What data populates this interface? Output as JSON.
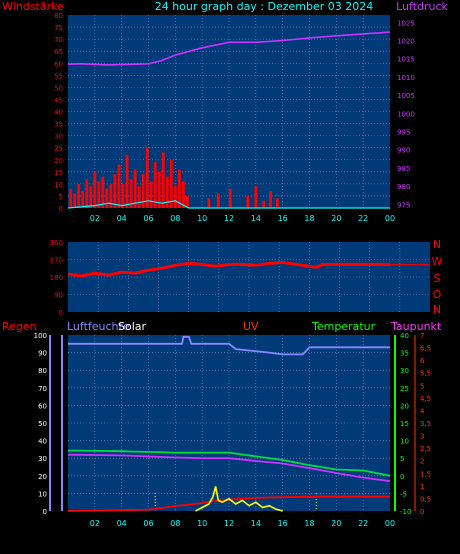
{
  "colors": {
    "background": "#000000",
    "plot_bg": "#003a78",
    "grid": "#6f8fb8",
    "red": "#ff0000",
    "magenta": "#cc33ff",
    "cyan": "#00ffff",
    "title": "#00ffff",
    "regen": "#ff0000",
    "luftfeuchte": "#8888ff",
    "solar": "#ffffff",
    "uv": "#ff3300",
    "temperatur": "#00ff00",
    "taupunkt": "#ff33ff",
    "solar_line": "#ffff00",
    "green_line": "#00dd44",
    "humidity_line": "#8888ff"
  },
  "chart_data": [
    {
      "type": "line",
      "title": "24 hour graph day : Dezember 03 2024",
      "ylabel_left": "Windstärke",
      "ylabel_right": "Luftdruck",
      "x_ticks": [
        "02",
        "04",
        "06",
        "08",
        "10",
        "12",
        "14",
        "16",
        "18",
        "20",
        "22",
        "00"
      ],
      "y_left_ticks": [
        "0",
        "5",
        "10",
        "15",
        "20",
        "25",
        "30",
        "35",
        "40",
        "45",
        "50",
        "55",
        "60",
        "65",
        "70",
        "75",
        "80"
      ],
      "y_left_range": [
        0,
        80
      ],
      "y_right_ticks": [
        "975",
        "980",
        "985",
        "990",
        "995",
        "1000",
        "1005",
        "1010",
        "1015",
        "1020",
        "1025"
      ],
      "y_right_range": [
        974,
        1027
      ],
      "grid": true,
      "series": [
        {
          "color": "#cc33ff",
          "axis": "right",
          "x": [
            0,
            1,
            3,
            6,
            7,
            8,
            10,
            12,
            14,
            16,
            18,
            20,
            22,
            24
          ],
          "y": [
            1013.5,
            1013.6,
            1013.3,
            1013.6,
            1014.5,
            1016.0,
            1018.0,
            1019.5,
            1019.5,
            1020.0,
            1020.7,
            1021.3,
            1021.8,
            1022.3
          ]
        },
        {
          "color": "#ff0000",
          "axis": "left",
          "style": "bars",
          "x": [
            0.2,
            0.5,
            0.8,
            1.1,
            1.4,
            1.7,
            2.0,
            2.3,
            2.6,
            2.9,
            3.2,
            3.5,
            3.8,
            4.1,
            4.4,
            4.7,
            5.0,
            5.3,
            5.6,
            5.9,
            6.2,
            6.5,
            6.8,
            7.1,
            7.4,
            7.7,
            8.0,
            8.3,
            8.6,
            8.9,
            10.5,
            11.2,
            12.1,
            13.4,
            14.0,
            14.6,
            15.1,
            15.6
          ],
          "y": [
            8,
            6,
            10,
            7,
            12,
            9,
            15,
            11,
            13,
            8,
            10,
            14,
            18,
            10,
            22,
            12,
            16,
            9,
            14,
            25,
            11,
            19,
            15,
            23,
            13,
            20,
            9,
            16,
            11,
            5,
            4,
            6,
            8,
            5,
            9,
            3,
            7,
            4
          ]
        },
        {
          "color": "#00ffff",
          "axis": "left",
          "x": [
            0,
            2,
            3,
            4,
            5,
            6,
            7,
            8,
            9,
            10,
            24
          ],
          "y": [
            0,
            1,
            2,
            1,
            2,
            3,
            2,
            3,
            0,
            0,
            0
          ]
        }
      ]
    },
    {
      "type": "line",
      "ylabel_right_letters": [
        "N",
        "W",
        "S",
        "O",
        "N"
      ],
      "y_left_ticks": [
        "0",
        "90",
        "180",
        "270",
        "360"
      ],
      "y_left_range": [
        0,
        360
      ],
      "grid": true,
      "series": [
        {
          "color": "#ff0000",
          "x": [
            0,
            1,
            2,
            3,
            4,
            5,
            6,
            7,
            8,
            9,
            10,
            11,
            12,
            13,
            14,
            15,
            16,
            17,
            18,
            18.5,
            19,
            24
          ],
          "y": [
            195,
            185,
            200,
            190,
            205,
            200,
            215,
            225,
            240,
            250,
            245,
            235,
            245,
            245,
            240,
            250,
            255,
            245,
            235,
            230,
            245,
            245
          ]
        }
      ]
    },
    {
      "type": "line",
      "labels": {
        "regen": "Regen",
        "luftfeuchte": "Luftfeuchte",
        "solar": "Solar",
        "uv": "UV",
        "temperatur": "Temperatur",
        "taupunkt": "Taupunkt"
      },
      "x_ticks": [
        "02",
        "04",
        "06",
        "08",
        "10",
        "12",
        "14",
        "16",
        "18",
        "20",
        "22",
        "00"
      ],
      "y_left_ticks": [
        "0",
        "10",
        "20",
        "30",
        "40",
        "50",
        "60",
        "70",
        "80",
        "90",
        "100"
      ],
      "y_left_range": [
        0,
        100
      ],
      "y_right_ticks": [
        "-10",
        "-5",
        "0",
        "5",
        "10",
        "15",
        "20",
        "25",
        "30",
        "35",
        "40"
      ],
      "y_right_range": [
        -10,
        40
      ],
      "y_uv_ticks": [
        "0",
        "0,5",
        "1",
        "1,5",
        "2",
        "2,5",
        "3",
        "3,5",
        "4",
        "4,5",
        "5",
        "5,5",
        "6",
        "6,5",
        "7"
      ],
      "y_uv_range": [
        0,
        7
      ],
      "grid": true,
      "series": [
        {
          "name": "Luftfeuchte",
          "color": "#8888ff",
          "axis": "left",
          "x": [
            0,
            8.5,
            8.6,
            9.0,
            9.2,
            12.0,
            12.5,
            15.0,
            16.0,
            17.5,
            18.0,
            24.0
          ],
          "y": [
            95,
            95,
            99,
            99,
            95,
            95,
            92,
            90,
            89,
            89,
            93,
            93
          ]
        },
        {
          "color": "#00dd44",
          "axis": "right",
          "x": [
            0,
            4,
            8,
            10,
            12,
            14,
            16,
            18,
            20,
            22,
            24
          ],
          "y": [
            7.2,
            7.0,
            6.6,
            6.6,
            6.6,
            5.5,
            4.5,
            3.0,
            1.8,
            1.5,
            0.0
          ]
        },
        {
          "color": "#cc33ff",
          "axis": "right",
          "x": [
            0,
            4,
            8,
            10,
            12,
            14,
            16,
            18,
            20,
            22,
            24
          ],
          "y": [
            6.0,
            5.8,
            5.2,
            5.0,
            5.0,
            4.2,
            3.5,
            2.2,
            0.8,
            -0.5,
            -1.5
          ]
        },
        {
          "color": "#ff0000",
          "axis": "uv",
          "x": [
            0,
            6,
            7,
            8,
            9,
            10,
            11,
            12,
            14,
            16,
            18,
            24
          ],
          "y": [
            0,
            0.05,
            0.12,
            0.2,
            0.25,
            0.32,
            0.4,
            0.45,
            0.52,
            0.55,
            0.57,
            0.57
          ]
        },
        {
          "name": "Solar",
          "color": "#ffff00",
          "axis": "left",
          "x": [
            9.5,
            10.0,
            10.5,
            10.8,
            11.0,
            11.2,
            11.5,
            12.0,
            12.5,
            13.0,
            13.5,
            14.0,
            14.5,
            15.0,
            15.5,
            16.0
          ],
          "y": [
            0,
            2,
            4,
            8,
            14,
            6,
            5,
            7,
            4,
            6,
            3,
            5,
            2,
            3,
            1,
            0
          ]
        }
      ]
    }
  ]
}
